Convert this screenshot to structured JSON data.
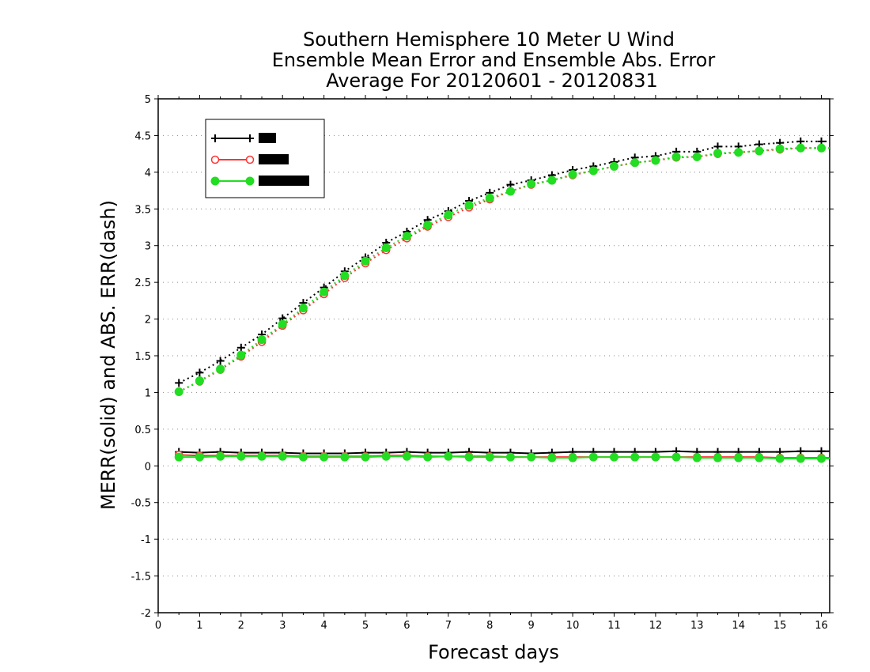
{
  "chart_data": {
    "type": "line",
    "title_lines": [
      "Southern Hemisphere 10 Meter U Wind",
      "Ensemble Mean Error and Ensemble Abs. Error",
      "Average For 20120601 - 20120831"
    ],
    "xlabel": "Forecast days",
    "ylabel": "MERR(solid) and ABS. ERR(dash)",
    "xlim": [
      0,
      16.2
    ],
    "ylim": [
      -2,
      5
    ],
    "x_ticks": [
      0,
      1,
      2,
      3,
      4,
      5,
      6,
      7,
      8,
      9,
      10,
      11,
      12,
      13,
      14,
      15,
      16
    ],
    "y_ticks": [
      -2,
      -1.5,
      -1,
      -0.5,
      0,
      0.5,
      1,
      1.5,
      2,
      2.5,
      3,
      3.5,
      4,
      4.5,
      5
    ],
    "grid": "horizontal dotted",
    "legend_placement": "top-left",
    "x": [
      0.5,
      1.0,
      1.5,
      2.0,
      2.5,
      3.0,
      3.5,
      4.0,
      4.5,
      5.0,
      5.5,
      6.0,
      6.5,
      7.0,
      7.5,
      8.0,
      8.5,
      9.0,
      9.5,
      10.0,
      10.5,
      11.0,
      11.5,
      12.0,
      12.5,
      13.0,
      13.5,
      14.0,
      14.5,
      15.0,
      15.5,
      16.0
    ],
    "series": [
      {
        "legend_glyph": "plus",
        "color": "#000000",
        "marker": "plus",
        "merr": [
          0.19,
          0.18,
          0.19,
          0.18,
          0.18,
          0.18,
          0.17,
          0.17,
          0.17,
          0.18,
          0.18,
          0.19,
          0.18,
          0.18,
          0.19,
          0.18,
          0.18,
          0.17,
          0.18,
          0.19,
          0.19,
          0.19,
          0.19,
          0.19,
          0.2,
          0.19,
          0.19,
          0.19,
          0.19,
          0.19,
          0.2,
          0.2
        ],
        "abs_err": [
          1.13,
          1.27,
          1.43,
          1.61,
          1.79,
          2.01,
          2.22,
          2.43,
          2.65,
          2.84,
          3.04,
          3.19,
          3.35,
          3.47,
          3.61,
          3.72,
          3.83,
          3.89,
          3.96,
          4.03,
          4.08,
          4.14,
          4.2,
          4.22,
          4.28,
          4.28,
          4.35,
          4.35,
          4.38,
          4.4,
          4.42,
          4.42
        ]
      },
      {
        "legend_glyph": "circle-open",
        "color": "#ff3333",
        "marker": "circle-open",
        "merr": [
          0.15,
          0.14,
          0.14,
          0.14,
          0.14,
          0.14,
          0.13,
          0.13,
          0.13,
          0.13,
          0.14,
          0.14,
          0.13,
          0.13,
          0.13,
          0.13,
          0.12,
          0.12,
          0.12,
          0.12,
          0.12,
          0.12,
          0.12,
          0.12,
          0.12,
          0.12,
          0.12,
          0.12,
          0.12,
          0.11,
          0.11,
          0.11
        ],
        "abs_err": [
          1.01,
          1.15,
          1.31,
          1.49,
          1.69,
          1.91,
          2.12,
          2.34,
          2.56,
          2.76,
          2.94,
          3.1,
          3.26,
          3.39,
          3.52,
          3.63,
          3.74,
          3.83,
          3.89,
          3.96,
          4.02,
          4.08,
          4.13,
          4.16,
          4.2,
          4.21,
          4.25,
          4.27,
          4.29,
          4.31,
          4.33,
          4.33
        ]
      },
      {
        "legend_glyph": "circle-filled",
        "color": "#22dd22",
        "marker": "circle-filled",
        "merr": [
          0.12,
          0.12,
          0.13,
          0.13,
          0.13,
          0.13,
          0.12,
          0.12,
          0.12,
          0.12,
          0.13,
          0.13,
          0.12,
          0.13,
          0.12,
          0.12,
          0.12,
          0.12,
          0.11,
          0.11,
          0.12,
          0.12,
          0.12,
          0.12,
          0.12,
          0.11,
          0.11,
          0.11,
          0.11,
          0.1,
          0.1,
          0.1
        ],
        "abs_err": [
          1.01,
          1.16,
          1.32,
          1.51,
          1.72,
          1.93,
          2.15,
          2.37,
          2.59,
          2.79,
          2.97,
          3.13,
          3.28,
          3.42,
          3.55,
          3.65,
          3.74,
          3.84,
          3.89,
          3.97,
          4.02,
          4.08,
          4.13,
          4.16,
          4.21,
          4.21,
          4.26,
          4.27,
          4.29,
          4.32,
          4.33,
          4.33
        ]
      }
    ]
  }
}
